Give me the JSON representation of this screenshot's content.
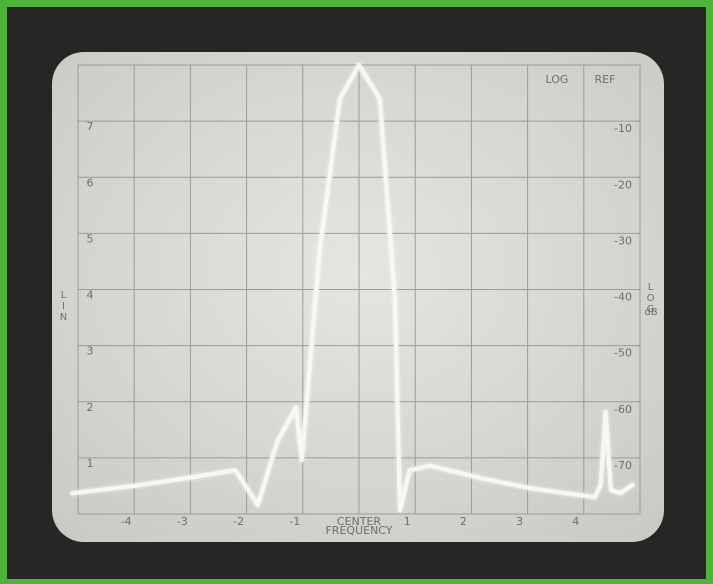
{
  "chart_data": {
    "type": "line",
    "top_right_labels": [
      "LOG",
      "REF"
    ],
    "y_label": "LIN",
    "y2_label": "LOG",
    "y2_unit": "dB",
    "xlabel": "FREQUENCY",
    "xlim": [
      -5,
      5
    ],
    "xticks": [
      -4,
      -3,
      -2,
      -1,
      {
        "value": 0,
        "label": "CENTER"
      },
      1,
      2,
      3,
      4
    ],
    "ylim": [
      0,
      8
    ],
    "yticks": [
      1,
      2,
      3,
      4,
      5,
      6,
      7
    ],
    "y2lim": [
      -80,
      0
    ],
    "y2ticks": [
      -10,
      -20,
      -30,
      -40,
      -50,
      -60,
      -70
    ],
    "grid": true,
    "x": [
      -5.1,
      -4.0,
      -3.0,
      -2.2,
      -1.8,
      -1.45,
      -1.12,
      -1.02,
      -0.7,
      -0.34,
      0,
      0.37,
      0.64,
      0.73,
      0.9,
      1.27,
      2.16,
      3.05,
      4.2,
      4.3,
      4.39,
      4.48,
      4.65,
      4.87
    ],
    "series": [
      {
        "color": "#f6f8f2",
        "values": [
          0.37,
          0.5,
          0.65,
          0.78,
          0.16,
          1.3,
          1.9,
          0.96,
          4.7,
          7.4,
          8.0,
          7.4,
          3.8,
          0.07,
          0.78,
          0.86,
          0.64,
          0.46,
          0.3,
          0.52,
          1.82,
          0.43,
          0.37,
          0.52
        ]
      }
    ]
  }
}
